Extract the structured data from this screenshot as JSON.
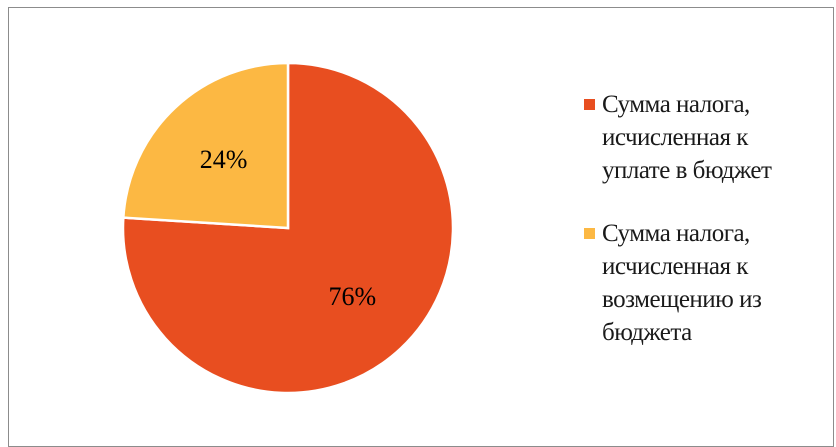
{
  "chart_data": {
    "type": "pie",
    "title": "",
    "slices": [
      {
        "label": "Сумма налога, исчисленная к уплате в бюджет",
        "value": 76,
        "display": "76%",
        "color": "#e84e20"
      },
      {
        "label": "Сумма налога, исчисленная к возмещению из бюджета",
        "value": 24,
        "display": "24%",
        "color": "#fcb843"
      }
    ],
    "legend_position": "right",
    "start_angle": "12 o'clock",
    "direction": "clockwise"
  },
  "legend": [
    {
      "lines": [
        "Сумма налога,",
        "исчисленная к",
        "уплате в бюджет"
      ],
      "color": "#e84e20"
    },
    {
      "lines": [
        "Сумма налога,",
        "исчисленная к",
        "возмещению из",
        "бюджета"
      ],
      "color": "#fcb843"
    }
  ]
}
